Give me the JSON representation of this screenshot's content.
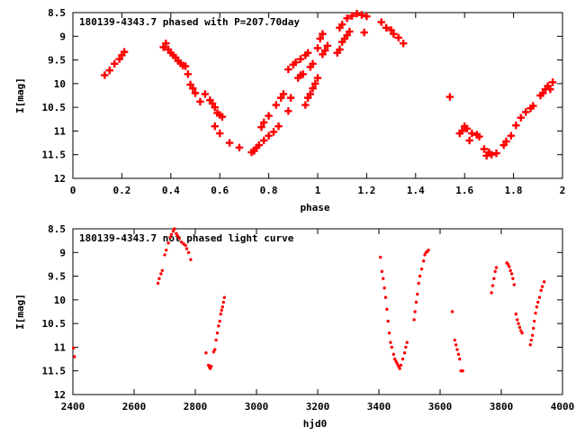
{
  "chart_data": [
    {
      "type": "scatter",
      "title": "180139-4343.7 phased with P=207.70day",
      "xlabel": "phase",
      "ylabel": "I[mag]",
      "xlim": [
        0,
        2
      ],
      "ylim": [
        12,
        8.5
      ],
      "y_inverted": true,
      "x_ticks": [
        "0",
        "0.2",
        "0.4",
        "0.6",
        "0.8",
        "1",
        "1.2",
        "1.4",
        "1.6",
        "1.8",
        "2"
      ],
      "x_tick_values": [
        0,
        0.2,
        0.4,
        0.6,
        0.8,
        1.0,
        1.2,
        1.4,
        1.6,
        1.8,
        2.0
      ],
      "y_ticks": [
        "8.5",
        "9",
        "9.5",
        "10",
        "10.5",
        "11",
        "11.5",
        "12"
      ],
      "y_tick_values": [
        8.5,
        9,
        9.5,
        10,
        10.5,
        11,
        11.5,
        12
      ],
      "marker": "plus-thick",
      "color": "#ff0000",
      "grid": false,
      "points": [
        [
          0.13,
          9.82
        ],
        [
          0.15,
          9.72
        ],
        [
          0.17,
          9.58
        ],
        [
          0.19,
          9.48
        ],
        [
          0.2,
          9.4
        ],
        [
          0.21,
          9.33
        ],
        [
          0.37,
          9.23
        ],
        [
          0.38,
          9.15
        ],
        [
          0.39,
          9.28
        ],
        [
          0.4,
          9.35
        ],
        [
          0.41,
          9.4
        ],
        [
          0.42,
          9.45
        ],
        [
          0.43,
          9.52
        ],
        [
          0.44,
          9.57
        ],
        [
          0.45,
          9.62
        ],
        [
          0.46,
          9.63
        ],
        [
          0.47,
          9.8
        ],
        [
          0.48,
          10.02
        ],
        [
          0.49,
          10.1
        ],
        [
          0.5,
          10.2
        ],
        [
          0.52,
          10.38
        ],
        [
          0.54,
          10.22
        ],
        [
          0.56,
          10.35
        ],
        [
          0.57,
          10.42
        ],
        [
          0.58,
          10.5
        ],
        [
          0.59,
          10.62
        ],
        [
          0.6,
          10.66
        ],
        [
          0.61,
          10.7
        ],
        [
          0.58,
          10.9
        ],
        [
          0.6,
          11.05
        ],
        [
          0.64,
          11.25
        ],
        [
          0.68,
          11.35
        ],
        [
          0.73,
          11.45
        ],
        [
          0.74,
          11.42
        ],
        [
          0.75,
          11.35
        ],
        [
          0.76,
          11.3
        ],
        [
          0.78,
          11.2
        ],
        [
          0.8,
          11.1
        ],
        [
          0.82,
          11.02
        ],
        [
          0.84,
          10.9
        ],
        [
          0.77,
          10.92
        ],
        [
          0.78,
          10.82
        ],
        [
          0.8,
          10.68
        ],
        [
          0.83,
          10.45
        ],
        [
          0.85,
          10.3
        ],
        [
          0.86,
          10.22
        ],
        [
          0.88,
          10.58
        ],
        [
          0.89,
          10.3
        ],
        [
          0.88,
          9.7
        ],
        [
          0.9,
          9.6
        ],
        [
          0.91,
          9.55
        ],
        [
          0.92,
          9.88
        ],
        [
          0.93,
          9.82
        ],
        [
          0.94,
          9.8
        ],
        [
          0.93,
          9.48
        ],
        [
          0.95,
          9.4
        ],
        [
          0.96,
          9.35
        ],
        [
          0.97,
          9.65
        ],
        [
          0.98,
          9.58
        ],
        [
          0.95,
          10.45
        ],
        [
          0.96,
          10.3
        ],
        [
          0.97,
          10.22
        ],
        [
          0.98,
          10.1
        ],
        [
          0.99,
          10.0
        ],
        [
          1.0,
          9.88
        ],
        [
          1.0,
          9.25
        ],
        [
          1.01,
          9.05
        ],
        [
          1.02,
          8.95
        ],
        [
          1.02,
          9.38
        ],
        [
          1.03,
          9.3
        ],
        [
          1.04,
          9.2
        ],
        [
          1.08,
          9.35
        ],
        [
          1.09,
          9.28
        ],
        [
          1.1,
          9.12
        ],
        [
          1.11,
          9.05
        ],
        [
          1.12,
          8.98
        ],
        [
          1.13,
          8.9
        ],
        [
          1.09,
          8.82
        ],
        [
          1.1,
          8.75
        ],
        [
          1.12,
          8.62
        ],
        [
          1.14,
          8.57
        ],
        [
          1.16,
          8.52
        ],
        [
          1.18,
          8.55
        ],
        [
          1.2,
          8.58
        ],
        [
          1.19,
          8.92
        ],
        [
          1.26,
          8.7
        ],
        [
          1.28,
          8.82
        ],
        [
          1.3,
          8.87
        ],
        [
          1.31,
          8.95
        ],
        [
          1.33,
          9.03
        ],
        [
          1.35,
          9.15
        ],
        [
          1.54,
          10.28
        ],
        [
          1.58,
          11.05
        ],
        [
          1.59,
          11.0
        ],
        [
          1.6,
          10.9
        ],
        [
          1.61,
          10.95
        ],
        [
          1.62,
          11.2
        ],
        [
          1.63,
          11.05
        ],
        [
          1.65,
          11.08
        ],
        [
          1.66,
          11.12
        ],
        [
          1.68,
          11.38
        ],
        [
          1.7,
          11.45
        ],
        [
          1.71,
          11.5
        ],
        [
          1.73,
          11.47
        ],
        [
          1.69,
          11.52
        ],
        [
          1.76,
          11.3
        ],
        [
          1.77,
          11.22
        ],
        [
          1.79,
          11.1
        ],
        [
          1.81,
          10.88
        ],
        [
          1.83,
          10.72
        ],
        [
          1.85,
          10.6
        ],
        [
          1.87,
          10.52
        ],
        [
          1.88,
          10.47
        ],
        [
          1.91,
          10.25
        ],
        [
          1.92,
          10.2
        ],
        [
          1.93,
          10.12
        ],
        [
          1.94,
          10.05
        ],
        [
          1.95,
          10.12
        ],
        [
          1.96,
          9.97
        ]
      ]
    },
    {
      "type": "scatter",
      "title": "180139-4343.7 not phased light curve",
      "xlabel": "hjd0",
      "ylabel": "I[mag]",
      "xlim": [
        2400,
        4000
      ],
      "ylim": [
        12,
        8.5
      ],
      "y_inverted": true,
      "x_ticks": [
        "2400",
        "2600",
        "2800",
        "3000",
        "3200",
        "3400",
        "3600",
        "3800",
        "4000"
      ],
      "x_tick_values": [
        2400,
        2600,
        2800,
        3000,
        3200,
        3400,
        3600,
        3800,
        4000
      ],
      "y_ticks": [
        "8.5",
        "9",
        "9.5",
        "10",
        "10.5",
        "11",
        "11.5",
        "12"
      ],
      "y_tick_values": [
        8.5,
        9,
        9.5,
        10,
        10.5,
        11,
        11.5,
        12
      ],
      "marker": "dot",
      "color": "#ff0000",
      "grid": false,
      "points": [
        [
          2402,
          11.02
        ],
        [
          2405,
          11.2
        ],
        [
          2678,
          9.65
        ],
        [
          2682,
          9.55
        ],
        [
          2688,
          9.45
        ],
        [
          2692,
          9.38
        ],
        [
          2700,
          9.05
        ],
        [
          2705,
          8.95
        ],
        [
          2712,
          8.8
        ],
        [
          2718,
          8.68
        ],
        [
          2722,
          8.62
        ],
        [
          2728,
          8.55
        ],
        [
          2732,
          8.5
        ],
        [
          2738,
          8.6
        ],
        [
          2742,
          8.65
        ],
        [
          2748,
          8.7
        ],
        [
          2755,
          8.78
        ],
        [
          2762,
          8.82
        ],
        [
          2768,
          8.85
        ],
        [
          2772,
          8.92
        ],
        [
          2778,
          9.0
        ],
        [
          2785,
          9.15
        ],
        [
          2835,
          11.12
        ],
        [
          2843,
          11.38
        ],
        [
          2846,
          11.42
        ],
        [
          2849,
          11.45
        ],
        [
          2852,
          11.4
        ],
        [
          2860,
          11.1
        ],
        [
          2864,
          11.05
        ],
        [
          2868,
          10.85
        ],
        [
          2872,
          10.7
        ],
        [
          2876,
          10.55
        ],
        [
          2880,
          10.45
        ],
        [
          2883,
          10.3
        ],
        [
          2886,
          10.22
        ],
        [
          2889,
          10.15
        ],
        [
          2892,
          10.05
        ],
        [
          2895,
          9.95
        ],
        [
          3405,
          9.1
        ],
        [
          3410,
          9.4
        ],
        [
          3414,
          9.55
        ],
        [
          3418,
          9.75
        ],
        [
          3422,
          9.95
        ],
        [
          3426,
          10.2
        ],
        [
          3430,
          10.45
        ],
        [
          3434,
          10.7
        ],
        [
          3438,
          10.9
        ],
        [
          3442,
          11.0
        ],
        [
          3448,
          11.15
        ],
        [
          3452,
          11.25
        ],
        [
          3456,
          11.3
        ],
        [
          3460,
          11.35
        ],
        [
          3464,
          11.4
        ],
        [
          3468,
          11.45
        ],
        [
          3472,
          11.38
        ],
        [
          3478,
          11.25
        ],
        [
          3484,
          11.12
        ],
        [
          3488,
          11.0
        ],
        [
          3492,
          10.9
        ],
        [
          3515,
          10.42
        ],
        [
          3518,
          10.25
        ],
        [
          3522,
          10.05
        ],
        [
          3526,
          9.88
        ],
        [
          3530,
          9.65
        ],
        [
          3534,
          9.5
        ],
        [
          3540,
          9.35
        ],
        [
          3546,
          9.18
        ],
        [
          3550,
          9.05
        ],
        [
          3554,
          9.0
        ],
        [
          3558,
          8.98
        ],
        [
          3562,
          8.95
        ],
        [
          3640,
          10.25
        ],
        [
          3648,
          10.85
        ],
        [
          3652,
          10.95
        ],
        [
          3656,
          11.05
        ],
        [
          3660,
          11.15
        ],
        [
          3664,
          11.25
        ],
        [
          3668,
          11.5
        ],
        [
          3674,
          11.5
        ],
        [
          3768,
          9.85
        ],
        [
          3772,
          9.7
        ],
        [
          3776,
          9.55
        ],
        [
          3780,
          9.4
        ],
        [
          3784,
          9.32
        ],
        [
          3818,
          9.22
        ],
        [
          3822,
          9.25
        ],
        [
          3826,
          9.3
        ],
        [
          3830,
          9.38
        ],
        [
          3834,
          9.45
        ],
        [
          3838,
          9.55
        ],
        [
          3842,
          9.68
        ],
        [
          3848,
          10.3
        ],
        [
          3852,
          10.42
        ],
        [
          3856,
          10.5
        ],
        [
          3860,
          10.58
        ],
        [
          3864,
          10.65
        ],
        [
          3868,
          10.7
        ],
        [
          3895,
          10.95
        ],
        [
          3898,
          10.85
        ],
        [
          3902,
          10.75
        ],
        [
          3905,
          10.6
        ],
        [
          3908,
          10.45
        ],
        [
          3912,
          10.28
        ],
        [
          3916,
          10.15
        ],
        [
          3920,
          10.05
        ],
        [
          3925,
          9.95
        ],
        [
          3930,
          9.8
        ],
        [
          3934,
          9.72
        ],
        [
          3940,
          9.62
        ]
      ]
    }
  ]
}
